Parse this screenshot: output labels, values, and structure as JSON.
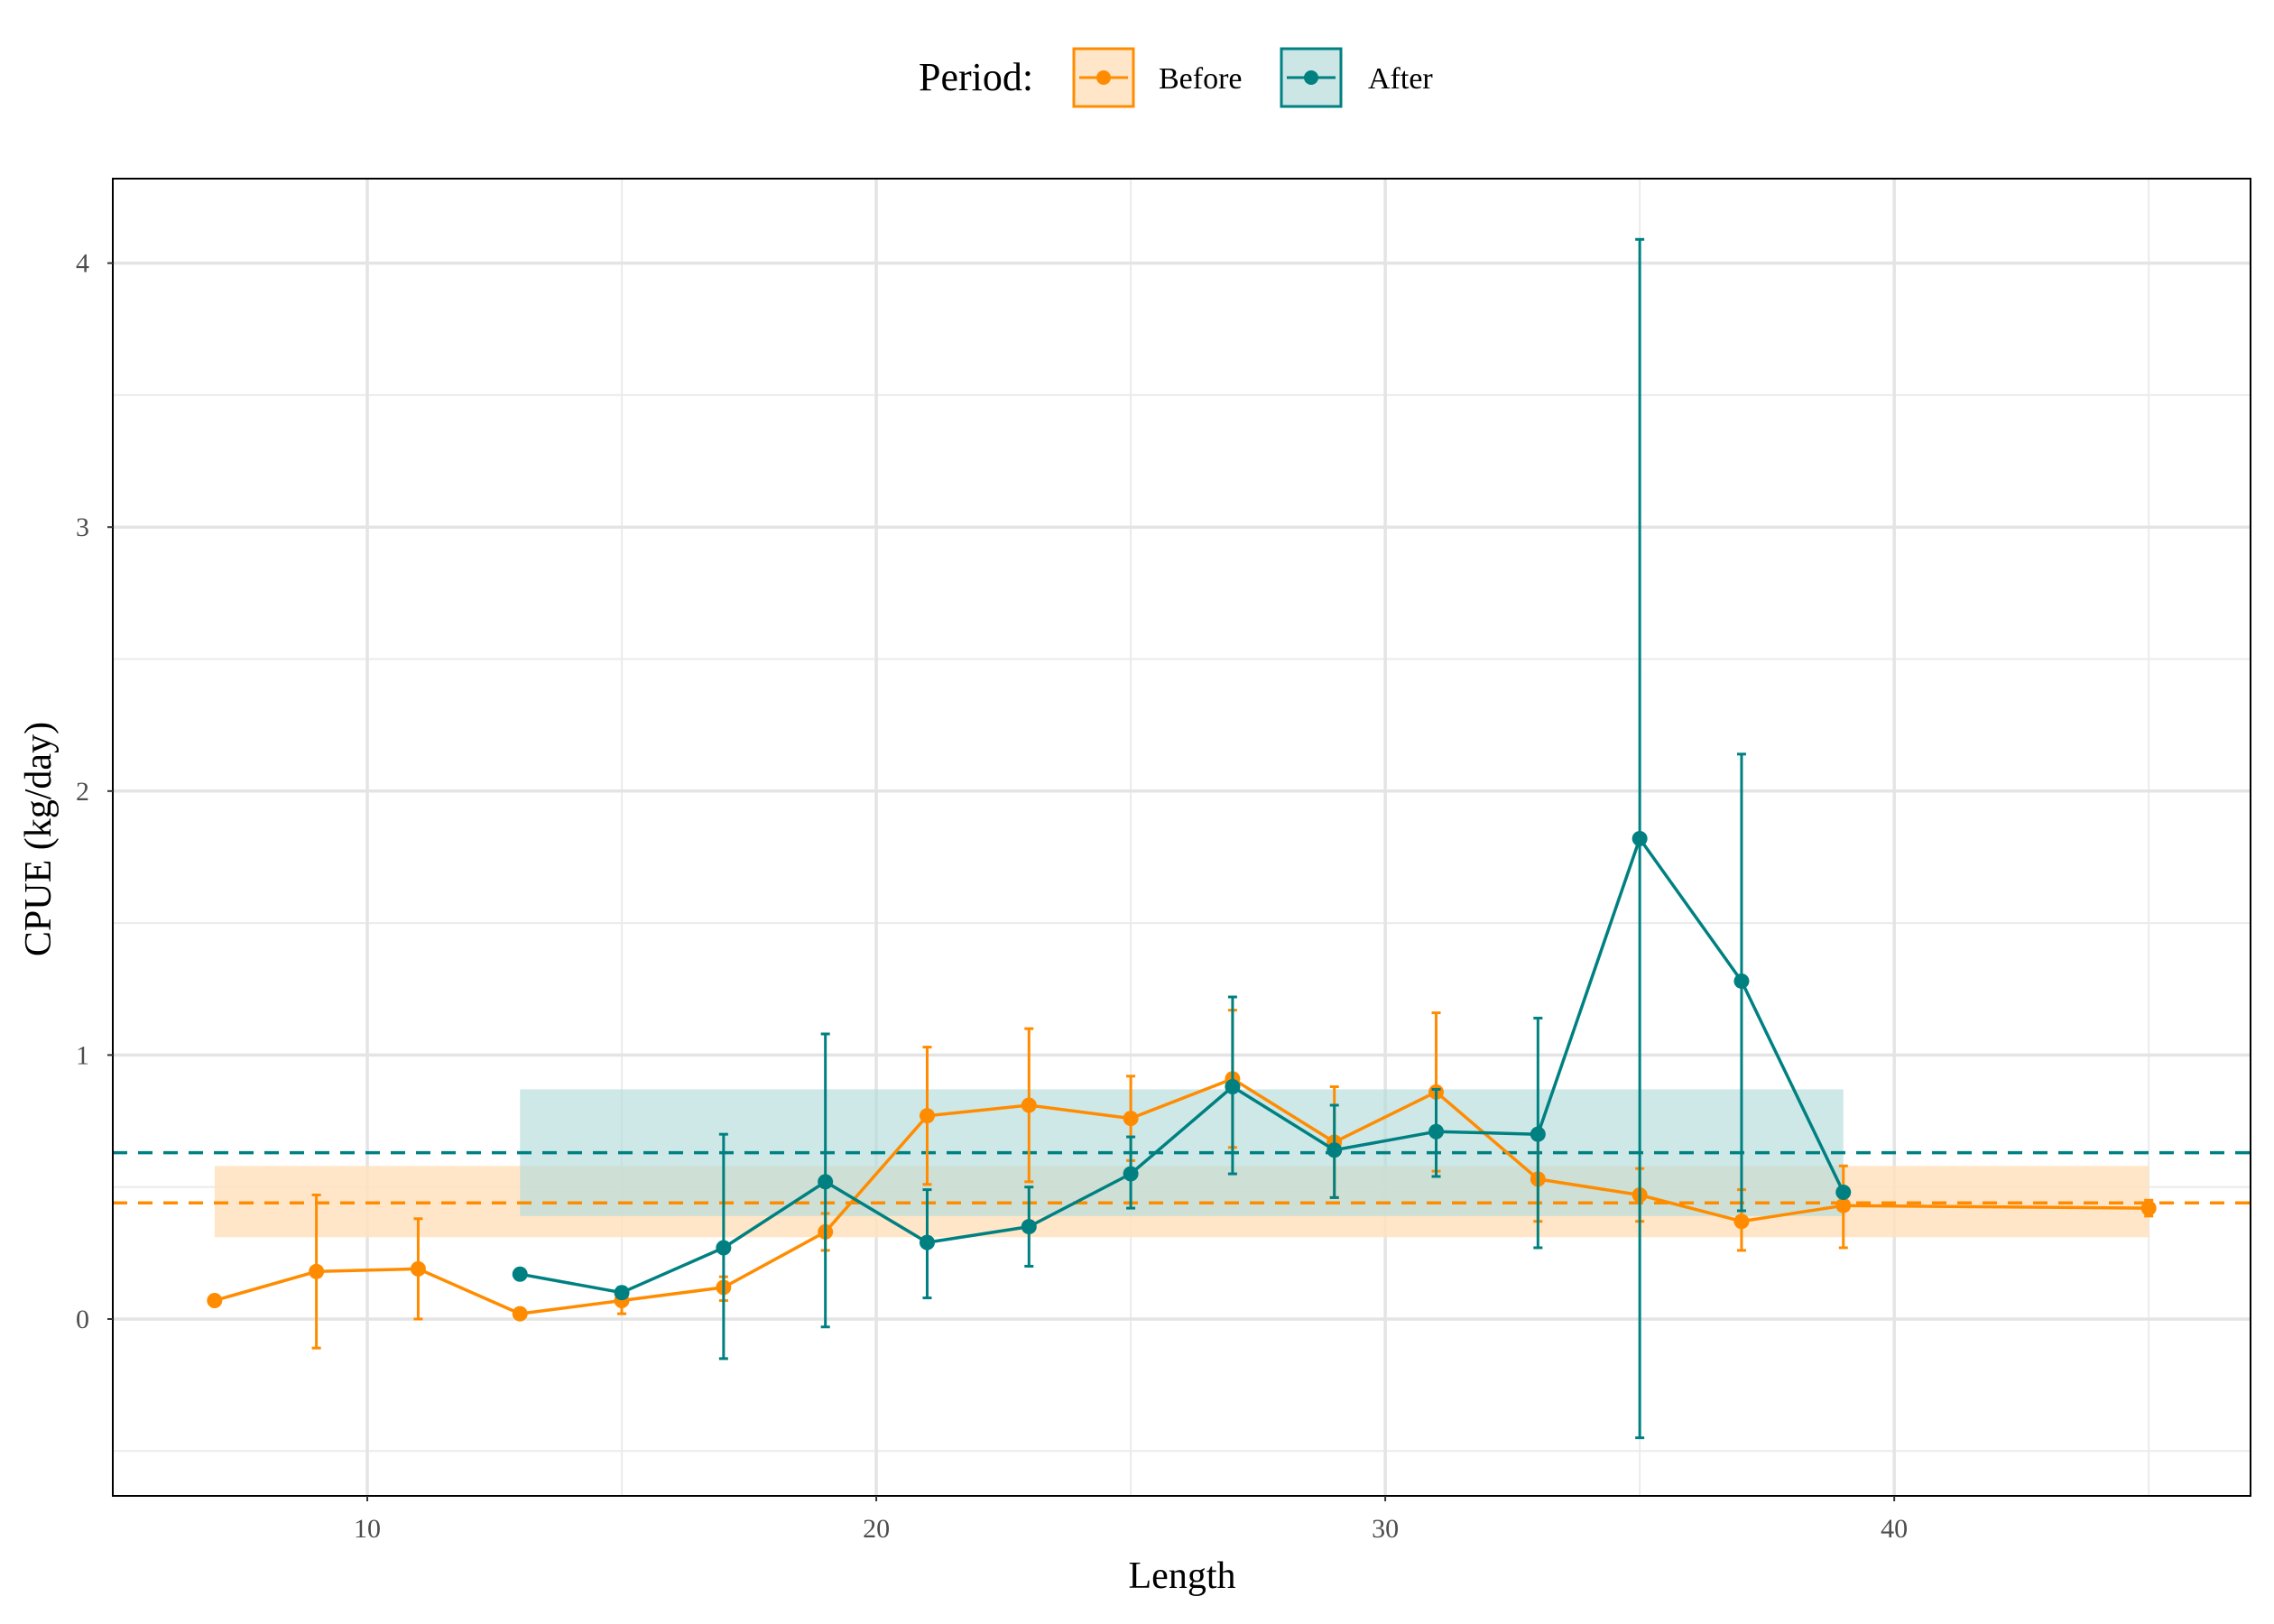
{
  "chart_data": {
    "type": "line",
    "xlabel": "Length",
    "ylabel": "CPUE (kg/day)",
    "xlim": [
      5,
      47
    ],
    "ylim": [
      -0.67,
      4.32
    ],
    "x_ticks": [
      10,
      20,
      30,
      40
    ],
    "y_ticks": [
      0,
      1,
      2,
      3,
      4
    ],
    "grid": true,
    "legend": {
      "title": "Period:",
      "position": "top",
      "entries": [
        "Before",
        "After"
      ]
    },
    "colors": {
      "Before": "#FF8C00",
      "After": "#008080"
    },
    "series": [
      {
        "name": "Before",
        "color": "#FF8C00",
        "band": {
          "x": [
            7,
            45
          ],
          "y": [
            0.31,
            0.58
          ]
        },
        "mean_line": 0.44,
        "points": [
          {
            "x": 7,
            "y": 0.07
          },
          {
            "x": 9,
            "y": 0.18,
            "lo": -0.11,
            "hi": 0.47
          },
          {
            "x": 11,
            "y": 0.19,
            "lo": 0.0,
            "hi": 0.38
          },
          {
            "x": 13,
            "y": 0.02
          },
          {
            "x": 15,
            "y": 0.07,
            "lo": 0.02,
            "hi": 0.11
          },
          {
            "x": 17,
            "y": 0.12,
            "lo": 0.07,
            "hi": 0.16
          },
          {
            "x": 19,
            "y": 0.33,
            "lo": 0.26,
            "hi": 0.4
          },
          {
            "x": 21,
            "y": 0.77,
            "lo": 0.51,
            "hi": 1.03
          },
          {
            "x": 23,
            "y": 0.81,
            "lo": 0.52,
            "hi": 1.1
          },
          {
            "x": 25,
            "y": 0.76,
            "lo": 0.6,
            "hi": 0.92
          },
          {
            "x": 27,
            "y": 0.91,
            "lo": 0.65,
            "hi": 1.17
          },
          {
            "x": 29,
            "y": 0.67,
            "lo": 0.46,
            "hi": 0.88
          },
          {
            "x": 31,
            "y": 0.86,
            "lo": 0.56,
            "hi": 1.16
          },
          {
            "x": 33,
            "y": 0.53,
            "lo": 0.37,
            "hi": 0.69
          },
          {
            "x": 35,
            "y": 0.47,
            "lo": 0.37,
            "hi": 0.57
          },
          {
            "x": 37,
            "y": 0.37,
            "lo": 0.26,
            "hi": 0.49
          },
          {
            "x": 39,
            "y": 0.43,
            "lo": 0.27,
            "hi": 0.58
          },
          {
            "x": 45,
            "y": 0.42,
            "lo": 0.39,
            "hi": 0.45
          }
        ]
      },
      {
        "name": "After",
        "color": "#008080",
        "band": {
          "x": [
            13,
            39
          ],
          "y": [
            0.39,
            0.87
          ]
        },
        "mean_line": 0.63,
        "points": [
          {
            "x": 13,
            "y": 0.17
          },
          {
            "x": 15,
            "y": 0.1,
            "lo": 0.08,
            "hi": 0.12
          },
          {
            "x": 17,
            "y": 0.27,
            "lo": -0.15,
            "hi": 0.7
          },
          {
            "x": 19,
            "y": 0.52,
            "lo": -0.03,
            "hi": 1.08
          },
          {
            "x": 21,
            "y": 0.29,
            "lo": 0.08,
            "hi": 0.49
          },
          {
            "x": 23,
            "y": 0.35,
            "lo": 0.2,
            "hi": 0.5
          },
          {
            "x": 25,
            "y": 0.55,
            "lo": 0.42,
            "hi": 0.69
          },
          {
            "x": 27,
            "y": 0.88,
            "lo": 0.55,
            "hi": 1.22
          },
          {
            "x": 29,
            "y": 0.64,
            "lo": 0.46,
            "hi": 0.81
          },
          {
            "x": 31,
            "y": 0.71,
            "lo": 0.54,
            "hi": 0.87
          },
          {
            "x": 33,
            "y": 0.7,
            "lo": 0.27,
            "hi": 1.14
          },
          {
            "x": 35,
            "y": 1.82,
            "lo": -0.45,
            "hi": 4.09
          },
          {
            "x": 37,
            "y": 1.28,
            "lo": 0.41,
            "hi": 2.14
          },
          {
            "x": 39,
            "y": 0.48
          }
        ]
      }
    ]
  }
}
